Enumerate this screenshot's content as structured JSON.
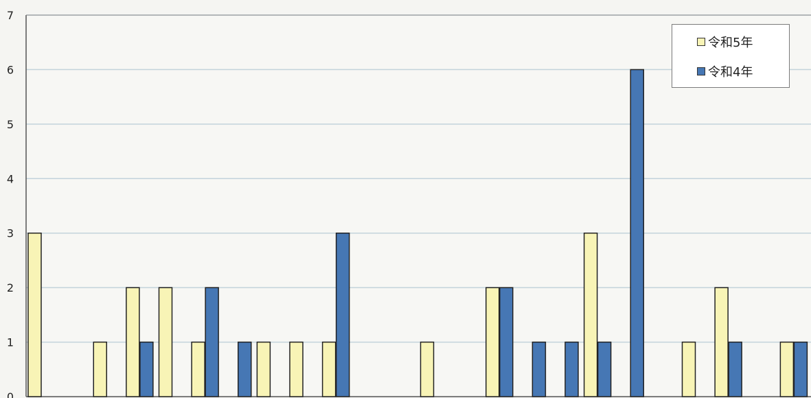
{
  "chart_data": {
    "type": "bar",
    "ylim": [
      0,
      7
    ],
    "yticks": [
      "0",
      "1",
      "2",
      "3",
      "4",
      "5",
      "6",
      "7"
    ],
    "grid": true,
    "legend_position": "top-right",
    "colors": {
      "s1": "#f8f4b6",
      "s2": "#4677b4",
      "grid": "#c3d3db"
    },
    "series": [
      {
        "name": "令和5年",
        "values": [
          3,
          0,
          1,
          2,
          2,
          1,
          0,
          1,
          1,
          1,
          0,
          0,
          1,
          0,
          2,
          0,
          0,
          3,
          0,
          0,
          1,
          2,
          0,
          1
        ]
      },
      {
        "name": "令和4年",
        "values": [
          0,
          0,
          0,
          1,
          0,
          2,
          1,
          0,
          0,
          3,
          0,
          0,
          0,
          0,
          2,
          1,
          1,
          1,
          6,
          0,
          0,
          1,
          0,
          1
        ]
      }
    ]
  }
}
